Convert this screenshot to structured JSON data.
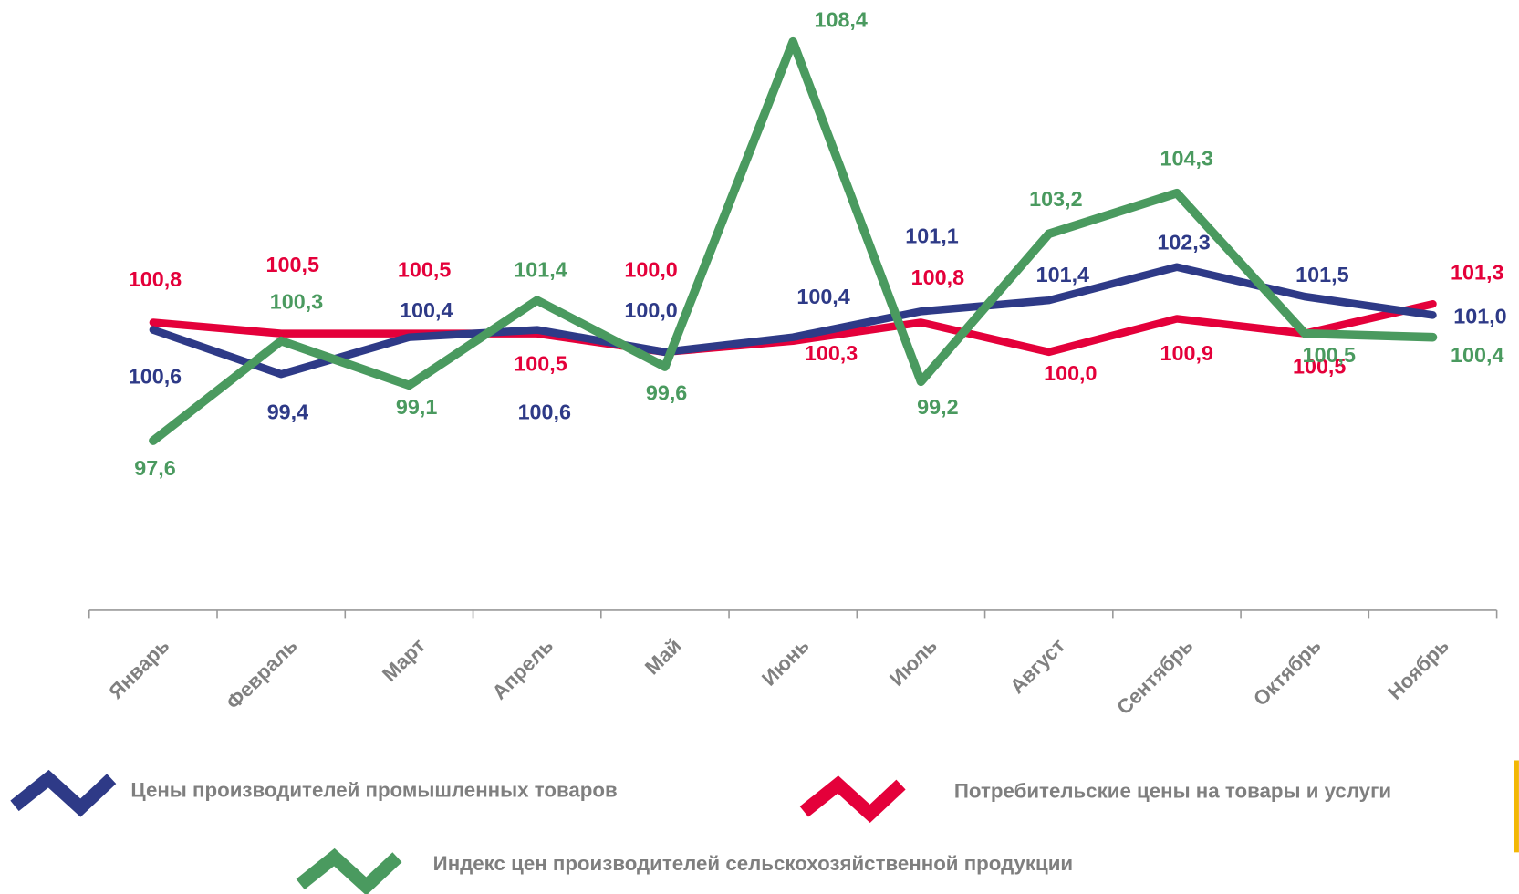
{
  "chart_data": {
    "type": "line",
    "categories": [
      "Январь",
      "Февраль",
      "Март",
      "Апрель",
      "Май",
      "Июнь",
      "Июль",
      "Август",
      "Сентябрь",
      "Октябрь",
      "Ноябрь"
    ],
    "series": [
      {
        "name": "Цены производителей промышленных товаров",
        "color": "#2e3a87",
        "values": [
          100.6,
          99.4,
          100.4,
          100.6,
          100.0,
          100.4,
          101.1,
          101.4,
          102.3,
          101.5,
          101.0
        ],
        "value_labels": [
          "100,6",
          "99,4",
          "100,4",
          "100,6",
          "100,0",
          "100,4",
          "101,1",
          "101,4",
          "102,3",
          "101,5",
          "101,0"
        ]
      },
      {
        "name": "Потребительские цены на товары и услуги",
        "color": "#e4003a",
        "values": [
          100.8,
          100.5,
          100.5,
          100.5,
          100.0,
          100.3,
          100.8,
          100.0,
          100.9,
          100.5,
          101.3
        ],
        "value_labels": [
          "100,8",
          "100,5",
          "100,5",
          "100,5",
          "100,0",
          "100,3",
          "100,8",
          "100,0",
          "100,9",
          "100,5",
          "101,3"
        ]
      },
      {
        "name": "Индекс цен производителей сельскохозяйственной продукции",
        "color": "#4a9a5f",
        "values": [
          97.6,
          100.3,
          99.1,
          101.4,
          99.6,
          108.4,
          99.2,
          103.2,
          104.3,
          100.5,
          100.4
        ],
        "value_labels": [
          "97,6",
          "100,3",
          "99,1",
          "101,4",
          "99,6",
          "108,4",
          "99,2",
          "103,2",
          "104,3",
          "100,5",
          "100,4"
        ]
      }
    ]
  }
}
